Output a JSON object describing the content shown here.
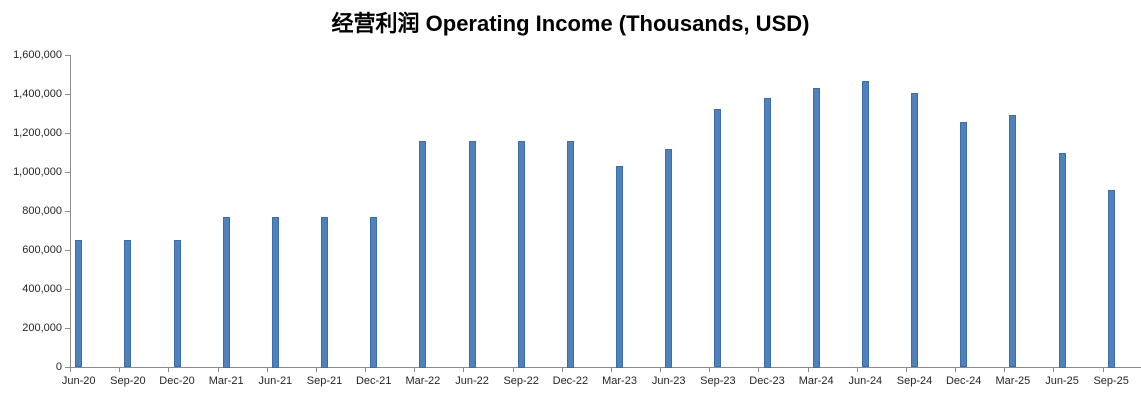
{
  "chart": {
    "title": "经营利润 Operating Income (Thousands, USD)"
  },
  "chart_data": {
    "type": "bar",
    "title": "经营利润 Operating Income (Thousands, USD)",
    "categories": [
      "Jun-20",
      "Sep-20",
      "Dec-20",
      "Mar-21",
      "Jun-21",
      "Sep-21",
      "Dec-21",
      "Mar-22",
      "Jun-22",
      "Sep-22",
      "Dec-22",
      "Mar-23",
      "Jun-23",
      "Sep-23",
      "Dec-23",
      "Mar-24",
      "Jun-24",
      "Sep-24",
      "Dec-24",
      "Mar-25",
      "Jun-25",
      "Sep-25"
    ],
    "values": [
      655000,
      655000,
      655000,
      770000,
      770000,
      770000,
      770000,
      1160000,
      1160000,
      1160000,
      1160000,
      1030000,
      1120000,
      1325000,
      1380000,
      1430000,
      1465000,
      1405000,
      1255000,
      1295000,
      1100000,
      910000
    ],
    "xlabel": "",
    "ylabel": "",
    "ylim": [
      0,
      1600000
    ],
    "ytick_interval": 200000,
    "ytick_labels": [
      "0",
      "200,000",
      "400,000",
      "600,000",
      "800,000",
      "1,000,000",
      "1,200,000",
      "1,400,000",
      "1,600,000"
    ],
    "grid": false,
    "legend": false,
    "bar_color": "#4F81BD",
    "bar_edge_color": "#3D6DA8",
    "axis_color": "#8C8C8C",
    "text_color": "#262626"
  }
}
